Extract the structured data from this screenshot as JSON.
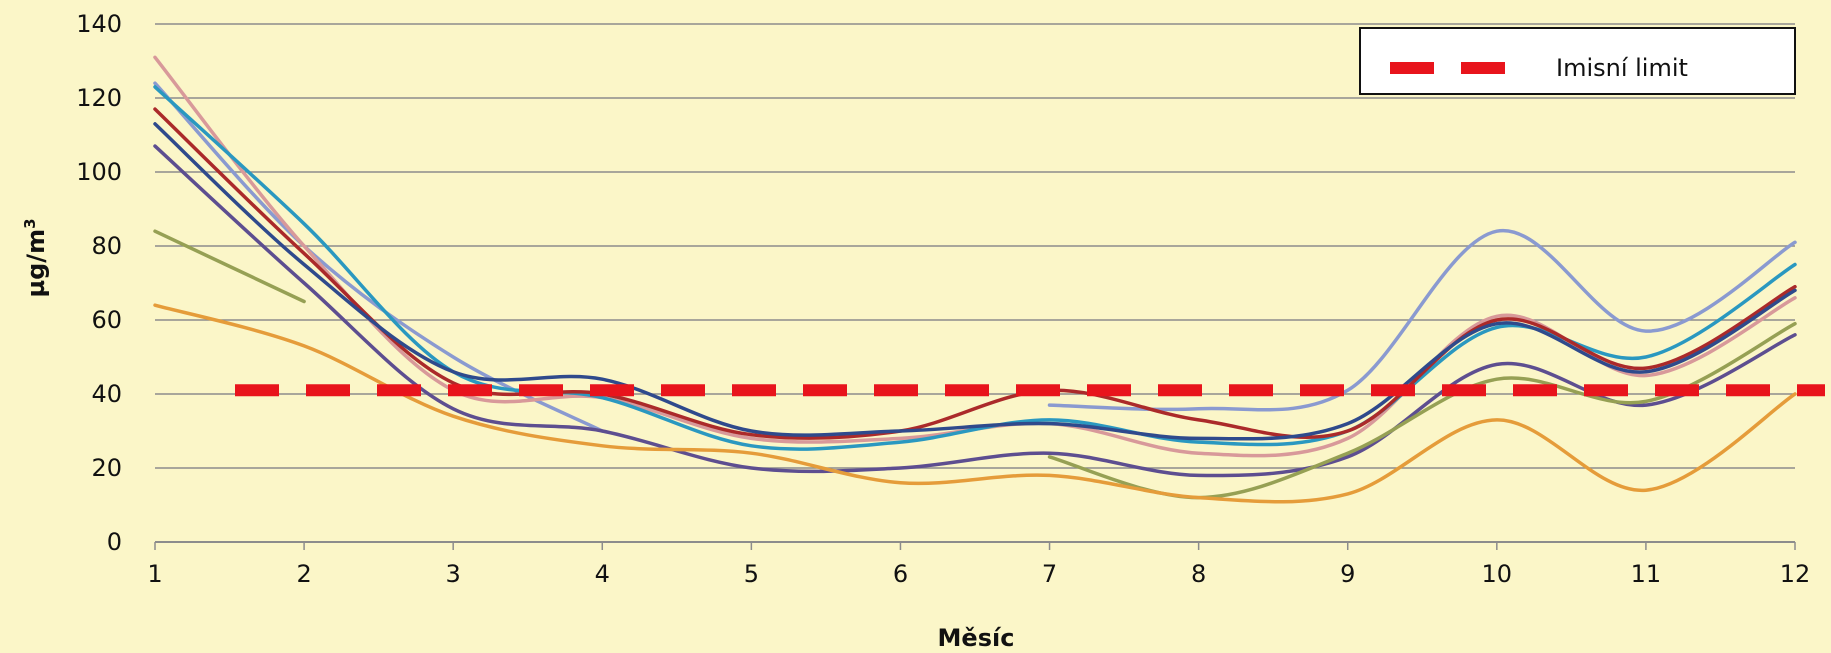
{
  "chart_data": {
    "type": "line",
    "xlabel": "Měsíc",
    "ylabel": "µg/m",
    "ylabel_sup": "3",
    "x": [
      1,
      2,
      3,
      4,
      5,
      6,
      7,
      8,
      9,
      10,
      11,
      12
    ],
    "xlim": [
      1,
      12
    ],
    "ylim": [
      0,
      140
    ],
    "yticks": [
      0,
      20,
      40,
      60,
      80,
      100,
      120,
      140
    ],
    "grid": "horizontal",
    "legend_position": "top-right",
    "limit_line": {
      "name": "Imisní limit",
      "value": 41,
      "color": "#e8141c"
    },
    "series": [
      {
        "color": "#8a9ad0",
        "values": [
          124,
          80,
          50,
          30,
          null,
          null,
          37,
          36,
          41,
          84,
          57,
          81
        ]
      },
      {
        "color": "#d8999a",
        "values": [
          131,
          80,
          41,
          39,
          28,
          28,
          32,
          24,
          28,
          61,
          45,
          66
        ]
      },
      {
        "color": "#2a98c0",
        "values": [
          123,
          86,
          46,
          39,
          26,
          27,
          33,
          27,
          30,
          58,
          50,
          75
        ]
      },
      {
        "color": "#ab2a2a",
        "values": [
          117,
          78,
          43,
          40,
          29,
          30,
          41,
          33,
          30,
          60,
          47,
          69
        ]
      },
      {
        "color": "#2f4a8c",
        "values": [
          113,
          75,
          46,
          44,
          30,
          30,
          32,
          28,
          32,
          59,
          46,
          68
        ]
      },
      {
        "color": "#5d4e90",
        "values": [
          107,
          70,
          36,
          30,
          20,
          20,
          24,
          18,
          23,
          48,
          37,
          56
        ]
      },
      {
        "color": "#96a054",
        "values": [
          84,
          65,
          null,
          null,
          null,
          null,
          23,
          12,
          24,
          44,
          38,
          59
        ]
      },
      {
        "color": "#e59c3a",
        "values": [
          64,
          53,
          34,
          26,
          24,
          16,
          18,
          12,
          13,
          33,
          14,
          40
        ]
      }
    ]
  }
}
